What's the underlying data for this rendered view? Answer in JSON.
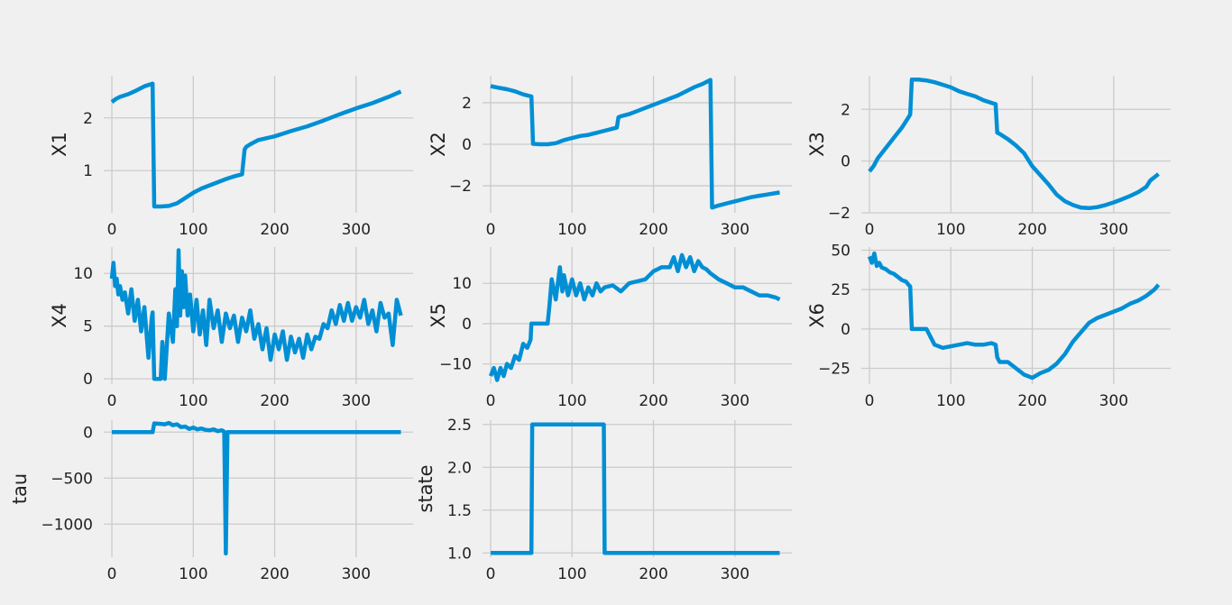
{
  "style": {
    "background": "#f0f0f0",
    "line_color": "#008fd5",
    "grid_color": "#cbcbcb",
    "text_color": "#222222"
  },
  "chart_data": [
    {
      "type": "line",
      "ylabel": "X1",
      "xlim": [
        -10,
        370
      ],
      "ylim": [
        0.2,
        2.8
      ],
      "xticks": [
        0,
        100,
        200,
        300
      ],
      "xtick_labels": [
        "0",
        "100",
        "200",
        "300"
      ],
      "yticks": [
        1,
        2
      ],
      "ytick_labels": [
        "1",
        "2"
      ],
      "grid": true,
      "series": [
        {
          "x": [
            0,
            5,
            10,
            20,
            30,
            40,
            50,
            52,
            60,
            70,
            80,
            90,
            100,
            110,
            120,
            130,
            140,
            150,
            160,
            163,
            165,
            170,
            180,
            200,
            220,
            240,
            260,
            280,
            300,
            320,
            340,
            355
          ],
          "y": [
            2.3,
            2.36,
            2.4,
            2.45,
            2.52,
            2.6,
            2.65,
            0.32,
            0.32,
            0.33,
            0.38,
            0.48,
            0.58,
            0.66,
            0.72,
            0.78,
            0.84,
            0.89,
            0.93,
            1.4,
            1.45,
            1.5,
            1.58,
            1.65,
            1.75,
            1.84,
            1.95,
            2.07,
            2.18,
            2.28,
            2.4,
            2.5
          ]
        }
      ]
    },
    {
      "type": "line",
      "ylabel": "X2",
      "xlim": [
        -10,
        370
      ],
      "ylim": [
        -3.3,
        3.3
      ],
      "xticks": [
        0,
        100,
        200,
        300
      ],
      "xtick_labels": [
        "0",
        "100",
        "200",
        "300"
      ],
      "yticks": [
        -2,
        0,
        2
      ],
      "ytick_labels": [
        "−2",
        "0",
        "2"
      ],
      "grid": true,
      "series": [
        {
          "x": [
            0,
            10,
            20,
            30,
            40,
            50,
            52,
            60,
            70,
            80,
            90,
            100,
            110,
            120,
            130,
            140,
            150,
            155,
            157,
            160,
            170,
            180,
            190,
            200,
            210,
            220,
            230,
            240,
            250,
            260,
            270,
            272,
            280,
            290,
            300,
            310,
            320,
            330,
            340,
            355
          ],
          "y": [
            2.8,
            2.72,
            2.65,
            2.55,
            2.4,
            2.3,
            0.02,
            0.0,
            0.0,
            0.05,
            0.2,
            0.3,
            0.4,
            0.45,
            0.55,
            0.65,
            0.75,
            0.8,
            1.3,
            1.35,
            1.45,
            1.6,
            1.75,
            1.9,
            2.05,
            2.2,
            2.35,
            2.55,
            2.75,
            2.9,
            3.1,
            -3.05,
            -2.95,
            -2.85,
            -2.75,
            -2.65,
            -2.55,
            -2.48,
            -2.42,
            -2.32
          ]
        }
      ]
    },
    {
      "type": "line",
      "ylabel": "X3",
      "xlim": [
        -10,
        370
      ],
      "ylim": [
        -2.0,
        3.3
      ],
      "xticks": [
        0,
        100,
        200,
        300
      ],
      "xtick_labels": [
        "0",
        "100",
        "200",
        "300"
      ],
      "yticks": [
        -2,
        0,
        2
      ],
      "ytick_labels": [
        "−2",
        "0",
        "2"
      ],
      "grid": true,
      "series": [
        {
          "x": [
            0,
            5,
            10,
            20,
            30,
            40,
            48,
            50,
            52,
            60,
            70,
            80,
            90,
            100,
            110,
            120,
            130,
            140,
            150,
            155,
            157,
            160,
            170,
            180,
            190,
            200,
            210,
            220,
            230,
            240,
            250,
            260,
            270,
            280,
            290,
            300,
            310,
            320,
            330,
            340,
            345,
            355
          ],
          "y": [
            -0.4,
            -0.2,
            0.1,
            0.5,
            0.9,
            1.3,
            1.7,
            1.8,
            3.15,
            3.15,
            3.12,
            3.05,
            2.95,
            2.85,
            2.7,
            2.6,
            2.5,
            2.35,
            2.25,
            2.2,
            1.1,
            1.05,
            0.85,
            0.6,
            0.3,
            -0.2,
            -0.55,
            -0.9,
            -1.3,
            -1.55,
            -1.7,
            -1.8,
            -1.82,
            -1.78,
            -1.7,
            -1.6,
            -1.48,
            -1.35,
            -1.2,
            -1.0,
            -0.75,
            -0.5
          ]
        }
      ]
    },
    {
      "type": "line",
      "ylabel": "X4",
      "xlim": [
        -10,
        370
      ],
      "ylim": [
        -0.5,
        12.5
      ],
      "xticks": [
        0,
        100,
        200,
        300
      ],
      "xtick_labels": [
        "0",
        "100",
        "200",
        "300"
      ],
      "yticks": [
        0,
        5,
        10
      ],
      "ytick_labels": [
        "0",
        "5",
        "10"
      ],
      "grid": true,
      "series": [
        {
          "x": [
            0,
            2,
            4,
            6,
            8,
            10,
            13,
            16,
            20,
            24,
            28,
            32,
            36,
            40,
            45,
            49,
            50,
            52,
            56,
            60,
            62,
            65,
            70,
            75,
            78,
            80,
            82,
            84,
            86,
            88,
            90,
            93,
            96,
            100,
            104,
            108,
            112,
            116,
            120,
            125,
            130,
            135,
            140,
            145,
            150,
            155,
            160,
            165,
            170,
            175,
            180,
            185,
            190,
            195,
            200,
            205,
            210,
            215,
            220,
            225,
            230,
            235,
            240,
            245,
            250,
            255,
            260,
            265,
            270,
            275,
            280,
            285,
            290,
            295,
            300,
            305,
            310,
            315,
            320,
            325,
            330,
            335,
            340,
            345,
            350,
            355
          ],
          "y": [
            9.5,
            11,
            8.8,
            9.5,
            8,
            8.8,
            7.5,
            8.2,
            6.2,
            8.5,
            5.5,
            7.5,
            4.5,
            6.8,
            2,
            5.8,
            6.3,
            0,
            0,
            0,
            3.5,
            0,
            6.2,
            3.5,
            8.5,
            5,
            12.2,
            6,
            10.2,
            6.8,
            9.8,
            6,
            8,
            4.5,
            7.5,
            4.2,
            6.5,
            3.2,
            7.5,
            4.8,
            6.5,
            3.5,
            6.2,
            4.8,
            6,
            3.5,
            5.8,
            4.5,
            6.5,
            3.8,
            5.2,
            2.8,
            4.8,
            1.8,
            4.2,
            2.8,
            4.5,
            1.8,
            4,
            2.5,
            3.8,
            2,
            4.2,
            2.8,
            4,
            3.8,
            5.2,
            4.8,
            6.5,
            5.2,
            7,
            5.5,
            7.2,
            5.5,
            6.8,
            5.8,
            7.5,
            5.2,
            6.5,
            4.5,
            7.2,
            5.8,
            6.2,
            3.2,
            7.5,
            6
          ]
        }
      ]
    },
    {
      "type": "line",
      "ylabel": "X5",
      "xlim": [
        -10,
        370
      ],
      "ylim": [
        -15,
        19
      ],
      "xticks": [
        0,
        100,
        200,
        300
      ],
      "xtick_labels": [
        "0",
        "100",
        "200",
        "300"
      ],
      "yticks": [
        -10,
        0,
        10
      ],
      "ytick_labels": [
        "−10",
        "0",
        "10"
      ],
      "grid": true,
      "series": [
        {
          "x": [
            0,
            4,
            8,
            12,
            16,
            20,
            25,
            30,
            35,
            40,
            45,
            49,
            50,
            52,
            60,
            70,
            72,
            75,
            80,
            85,
            88,
            90,
            95,
            100,
            105,
            110,
            115,
            120,
            125,
            130,
            135,
            140,
            150,
            160,
            170,
            180,
            190,
            200,
            210,
            220,
            225,
            230,
            235,
            240,
            245,
            250,
            255,
            260,
            265,
            270,
            280,
            290,
            300,
            310,
            320,
            330,
            340,
            350,
            355
          ],
          "y": [
            -13,
            -11,
            -14,
            -11,
            -13,
            -10,
            -11,
            -8,
            -9,
            -5,
            -6,
            -4,
            0,
            0,
            0,
            0,
            4,
            11,
            6,
            14,
            8,
            12,
            7,
            11,
            7,
            10,
            6,
            9,
            7,
            10,
            8,
            9,
            9.5,
            8,
            10,
            10.5,
            11,
            13,
            14,
            14,
            16.5,
            13,
            17,
            14,
            16.5,
            13,
            15.5,
            14,
            13.5,
            12.5,
            11,
            10,
            9,
            9,
            8,
            7,
            7,
            6.5,
            6
          ]
        }
      ]
    },
    {
      "type": "line",
      "ylabel": "X6",
      "xlim": [
        -10,
        370
      ],
      "ylim": [
        -35,
        52
      ],
      "xticks": [
        0,
        100,
        200,
        300
      ],
      "xtick_labels": [
        "0",
        "100",
        "200",
        "300"
      ],
      "yticks": [
        -25,
        0,
        25,
        50
      ],
      "ytick_labels": [
        "−25",
        "0",
        "25",
        "50"
      ],
      "grid": true,
      "series": [
        {
          "x": [
            0,
            3,
            6,
            9,
            12,
            15,
            20,
            25,
            30,
            35,
            40,
            45,
            48,
            50,
            52,
            60,
            70,
            80,
            90,
            100,
            110,
            120,
            130,
            140,
            150,
            155,
            157,
            160,
            170,
            180,
            190,
            200,
            210,
            220,
            230,
            240,
            250,
            260,
            270,
            280,
            290,
            300,
            310,
            320,
            330,
            340,
            350,
            355
          ],
          "y": [
            46,
            42,
            48,
            40,
            42,
            39,
            38,
            36,
            35,
            33,
            31,
            30,
            28,
            27,
            0,
            0,
            0,
            -10,
            -12,
            -11,
            -10,
            -9,
            -10,
            -10,
            -9,
            -10,
            -18,
            -21,
            -21,
            -25,
            -29,
            -31,
            -28,
            -26,
            -22,
            -16,
            -8,
            -2,
            4,
            7,
            9,
            11,
            13,
            16,
            18,
            21,
            25,
            28
          ]
        }
      ]
    },
    {
      "type": "line",
      "ylabel": "tau",
      "xlim": [
        -10,
        370
      ],
      "ylim": [
        -1360,
        130
      ],
      "xticks": [
        0,
        100,
        200,
        300
      ],
      "xtick_labels": [
        "0",
        "100",
        "200",
        "300"
      ],
      "yticks": [
        -1000,
        -500,
        0
      ],
      "ytick_labels": [
        "−1000",
        "−500",
        "0"
      ],
      "grid": true,
      "series": [
        {
          "x": [
            0,
            50,
            52,
            60,
            65,
            70,
            75,
            80,
            85,
            90,
            95,
            100,
            105,
            110,
            115,
            120,
            125,
            130,
            135,
            138,
            140,
            142,
            144,
            355
          ],
          "y": [
            0,
            0,
            95,
            90,
            85,
            100,
            75,
            85,
            55,
            60,
            35,
            50,
            30,
            40,
            25,
            20,
            30,
            10,
            20,
            5,
            -1320,
            0,
            0,
            0
          ]
        }
      ]
    },
    {
      "type": "line",
      "ylabel": "state",
      "xlim": [
        -10,
        370
      ],
      "ylim": [
        0.95,
        2.55
      ],
      "xticks": [
        0,
        100,
        200,
        300
      ],
      "xtick_labels": [
        "0",
        "100",
        "200",
        "300"
      ],
      "yticks": [
        1.0,
        1.5,
        2.0,
        2.5
      ],
      "ytick_labels": [
        "1.0",
        "1.5",
        "2.0",
        "2.5"
      ],
      "grid": true,
      "series": [
        {
          "x": [
            0,
            50,
            51,
            139,
            140,
            355
          ],
          "y": [
            1,
            1,
            2.5,
            2.5,
            1,
            1
          ]
        }
      ]
    }
  ]
}
